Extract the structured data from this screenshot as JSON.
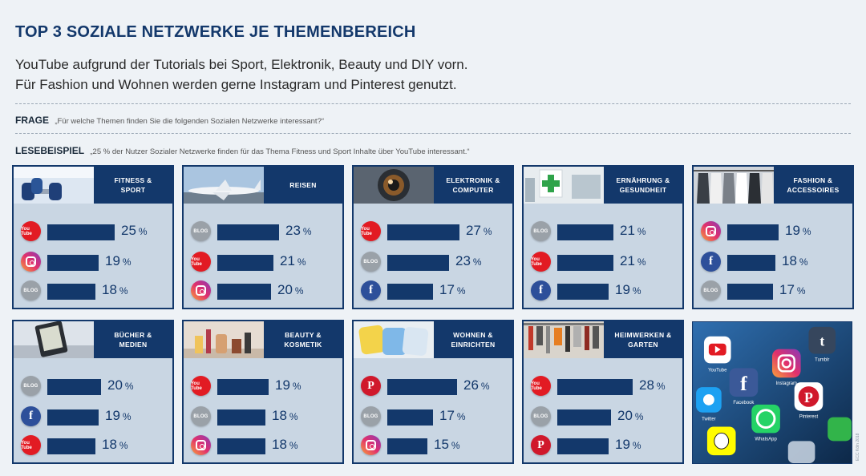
{
  "header": {
    "title": "TOP 3 SOZIALE NETZWERKE JE THEMENBEREICH",
    "subtitle_1": "YouTube aufgrund der Tutorials bei Sport, Elektronik, Beauty und DIY vorn.",
    "subtitle_2": "Für Fashion und Wohnen werden gerne Instagram und Pinterest genutzt."
  },
  "question": {
    "label": "FRAGE",
    "text": "„Für welche Themen finden Sie die folgenden Sozialen Netzwerke interessant?“"
  },
  "example": {
    "label": "LESEBEISPIEL",
    "text": "„25 % der Nutzer Sozialer Netzwerke finden für das Thema Fitness und Sport Inhalte über YouTube interessant.“"
  },
  "units": {
    "percent": "%"
  },
  "badge_text": {
    "youtube": "You Tube",
    "blog": "BLOG",
    "facebook": "f",
    "pinterest": "P"
  },
  "colors": {
    "navy": "#13386b",
    "card": "#c9d6e3",
    "youtube": "#e21b23",
    "facebook": "#2d4f9a",
    "pinterest": "#d0182b",
    "blog": "#9aa1a8"
  },
  "photo_card": {
    "icon_names": [
      "youtube-icon",
      "tumblr-icon",
      "twitter-icon",
      "facebook-icon",
      "instagram-icon",
      "pinterest-icon",
      "whatsapp-icon",
      "snapchat-icon"
    ],
    "labels": {
      "youtube": "YouTube",
      "facebook": "Facebook",
      "instagram": "Instagram",
      "pinterest": "Pinterest",
      "twitter": "Twitter",
      "whatsapp": "WhatsApp",
      "tumblr": "Tumblr"
    }
  },
  "credit": "ECC Köln 2018",
  "chart_data": [
    {
      "type": "bar",
      "title": "FITNESS &\nSPORT",
      "thumb": "dumbbell-photo",
      "categories": [
        "YouTube",
        "Instagram",
        "Blog"
      ],
      "networks": [
        "youtube",
        "instagram",
        "blog"
      ],
      "values": [
        25,
        19,
        18
      ]
    },
    {
      "type": "bar",
      "title": "REISEN",
      "thumb": "airplane-photo",
      "categories": [
        "Blog",
        "YouTube",
        "Instagram"
      ],
      "networks": [
        "blog",
        "youtube",
        "instagram"
      ],
      "values": [
        23,
        21,
        20
      ]
    },
    {
      "type": "bar",
      "title": "ELEKTRONIK &\nCOMPUTER",
      "thumb": "camera-lens-photo",
      "categories": [
        "YouTube",
        "Blog",
        "Facebook"
      ],
      "networks": [
        "youtube",
        "blog",
        "facebook"
      ],
      "values": [
        27,
        23,
        17
      ]
    },
    {
      "type": "bar",
      "title": "ERNÄHRUNG &\nGESUNDHEIT",
      "thumb": "pharmacy-photo",
      "categories": [
        "Blog",
        "YouTube",
        "Facebook"
      ],
      "networks": [
        "blog",
        "youtube",
        "facebook"
      ],
      "values": [
        21,
        21,
        19
      ]
    },
    {
      "type": "bar",
      "title": "FASHION &\nACCESSOIRES",
      "thumb": "clothes-rack-photo",
      "categories": [
        "Instagram",
        "Facebook",
        "Blog"
      ],
      "networks": [
        "instagram",
        "facebook",
        "blog"
      ],
      "values": [
        19,
        18,
        17
      ]
    },
    {
      "type": "bar",
      "title": "BÜCHER &\nMEDIEN",
      "thumb": "ebook-reader-photo",
      "categories": [
        "Blog",
        "Facebook",
        "YouTube"
      ],
      "networks": [
        "blog",
        "facebook",
        "youtube"
      ],
      "values": [
        20,
        19,
        18
      ]
    },
    {
      "type": "bar",
      "title": "BEAUTY &\nKOSMETIK",
      "thumb": "cosmetics-photo",
      "categories": [
        "YouTube",
        "Blog",
        "Instagram"
      ],
      "networks": [
        "youtube",
        "blog",
        "instagram"
      ],
      "values": [
        19,
        18,
        18
      ]
    },
    {
      "type": "bar",
      "title": "WOHNEN &\nEINRICHTEN",
      "thumb": "cushions-photo",
      "categories": [
        "Pinterest",
        "Blog",
        "Instagram"
      ],
      "networks": [
        "pinterest",
        "blog",
        "instagram"
      ],
      "values": [
        26,
        17,
        15
      ]
    },
    {
      "type": "bar",
      "title": "HEIMWERKEN &\nGARTEN",
      "thumb": "tools-photo",
      "categories": [
        "YouTube",
        "Blog",
        "Pinterest"
      ],
      "networks": [
        "youtube",
        "blog",
        "pinterest"
      ],
      "values": [
        28,
        20,
        19
      ]
    }
  ]
}
